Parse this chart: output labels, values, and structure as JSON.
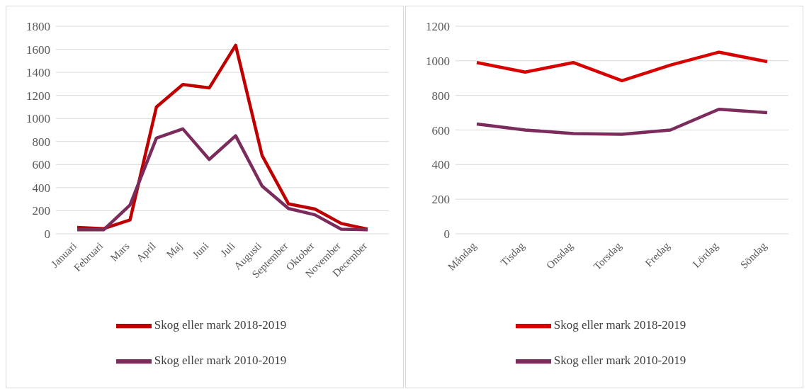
{
  "chart_data": [
    {
      "type": "line",
      "categories": [
        "Januari",
        "Februari",
        "Mars",
        "April",
        "Maj",
        "Juni",
        "Juli",
        "Augusti",
        "September",
        "Oktober",
        "November",
        "December"
      ],
      "series": [
        {
          "name": "Skog eller mark 2018-2019",
          "color": "#c00000",
          "values": [
            55,
            45,
            120,
            1100,
            1295,
            1265,
            1635,
            680,
            260,
            215,
            90,
            40
          ]
        },
        {
          "name": "Skog eller mark 2010-2019",
          "color": "#7b2c5c",
          "values": [
            35,
            35,
            250,
            830,
            910,
            645,
            850,
            415,
            220,
            165,
            40,
            35
          ]
        }
      ],
      "ylim": [
        0,
        1800
      ],
      "yticks": [
        0,
        200,
        400,
        600,
        800,
        1000,
        1200,
        1400,
        1600,
        1800
      ],
      "grid": "y",
      "legend": "bottom",
      "marker": "none",
      "line_style": "solid"
    },
    {
      "type": "line",
      "categories": [
        "Måndag",
        "Tisdag",
        "Onsdag",
        "Torsdag",
        "Fredag",
        "Lördag",
        "Söndag"
      ],
      "series": [
        {
          "name": "Skog eller mark 2018-2019",
          "color": "#d90000",
          "values": [
            990,
            935,
            990,
            885,
            975,
            1050,
            995
          ]
        },
        {
          "name": "Skog eller mark 2010-2019",
          "color": "#7b2c5c",
          "values": [
            635,
            600,
            580,
            575,
            600,
            720,
            700
          ]
        }
      ],
      "ylim": [
        0,
        1200
      ],
      "yticks": [
        0,
        200,
        400,
        600,
        800,
        1000,
        1200
      ],
      "grid": "y",
      "legend": "bottom",
      "marker": "none",
      "line_style": "solid"
    }
  ]
}
